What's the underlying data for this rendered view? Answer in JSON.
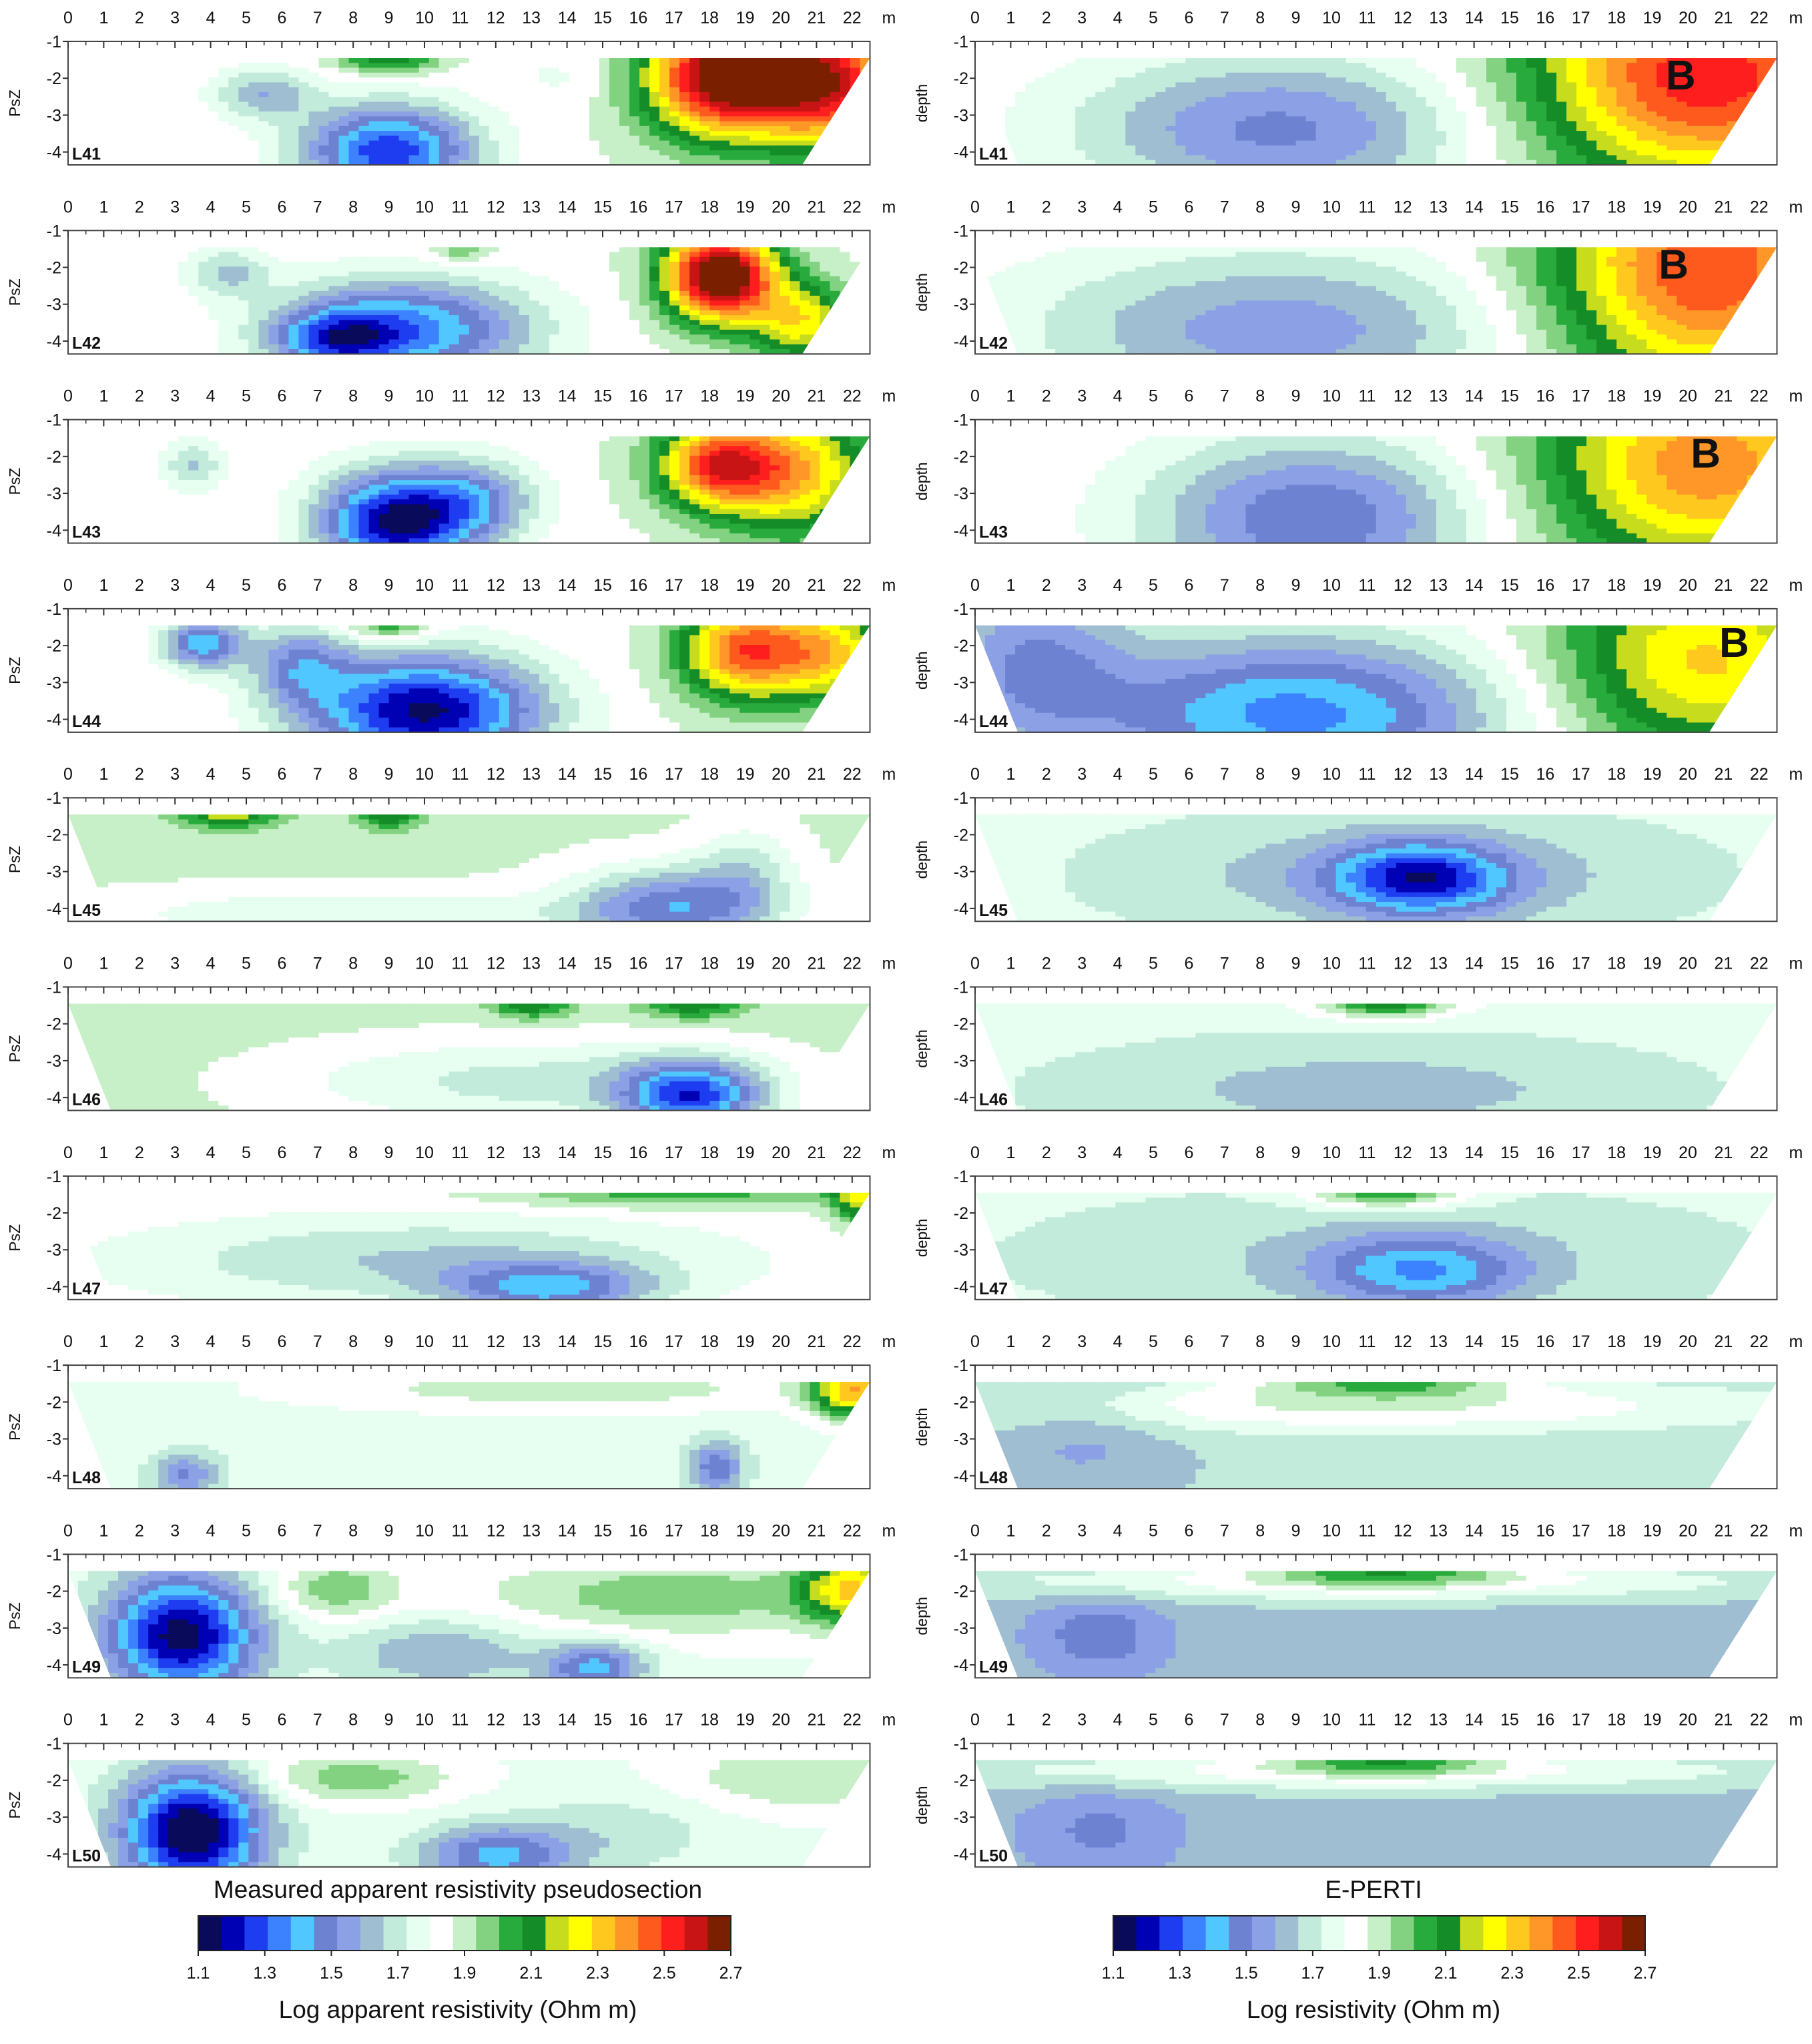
{
  "figure": {
    "columns": [
      {
        "id": "measured",
        "caption": "Measured apparent resistivity pseudosection",
        "ylabel": "PsZ",
        "colorbar": {
          "label": "Log apparent resistivity (Ohm m)",
          "ticks": [
            "1.1",
            "1.3",
            "1.5",
            "1.7",
            "1.9",
            "2.1",
            "2.3",
            "2.5",
            "2.7"
          ]
        }
      },
      {
        "id": "eperti",
        "caption": "E-PERTI",
        "ylabel": "depth",
        "colorbar": {
          "label": "Log resistivity (Ohm m)",
          "ticks": [
            "1.1",
            "1.3",
            "1.5",
            "1.7",
            "1.9",
            "2.1",
            "2.3",
            "2.5",
            "2.7"
          ]
        }
      }
    ],
    "x_unit": "m",
    "colormap": [
      "#0a0a5a",
      "#0000b4",
      "#1e3cf0",
      "#3c82ff",
      "#50c8ff",
      "#6e82d2",
      "#8ca0e6",
      "#a0bed2",
      "#c3ebdc",
      "#e6fff0",
      "#ffffff",
      "#c8f0c8",
      "#82d282",
      "#28aa3c",
      "#148c28",
      "#c8dc1e",
      "#ffff00",
      "#ffc81e",
      "#ff9628",
      "#ff5a1e",
      "#ff1e1e",
      "#c81414",
      "#7a1f00"
    ]
  },
  "chart_data": {
    "type": "heatmap",
    "x_range": [
      0,
      22.5
    ],
    "x_ticks": [
      "0",
      "1",
      "2",
      "3",
      "4",
      "5",
      "6",
      "7",
      "8",
      "9",
      "10",
      "11",
      "12",
      "13",
      "14",
      "15",
      "16",
      "17",
      "18",
      "19",
      "20",
      "21",
      "22"
    ],
    "y_range": [
      -4.5,
      -1
    ],
    "y_ticks": [
      "-1",
      "-2",
      "-3",
      "-4"
    ],
    "color_range": [
      1.1,
      2.7
    ],
    "lines": [
      {
        "label": "L41",
        "eperti_marker": "B",
        "measured_base": 1.85,
        "eperti_base": 1.85,
        "measured_features": [
          {
            "x": 18.5,
            "y": -2.0,
            "sx": 1.6,
            "sy": 1.2,
            "amp": 0.9
          },
          {
            "x": 21.5,
            "y": -2.2,
            "sx": 1.4,
            "sy": 1.3,
            "amp": 0.65
          },
          {
            "x": 9.0,
            "y": -4.1,
            "sx": 1.7,
            "sy": 0.9,
            "amp": -0.6
          },
          {
            "x": 5.5,
            "y": -2.5,
            "sx": 1.0,
            "sy": 0.5,
            "amp": -0.25
          },
          {
            "x": 9.0,
            "y": -1.5,
            "sx": 1.0,
            "sy": 0.3,
            "amp": 0.3
          },
          {
            "x": 14.0,
            "y": -2.0,
            "sx": 1.2,
            "sy": 0.6,
            "amp": -0.07
          }
        ],
        "eperti_features": [
          {
            "x": 20.5,
            "y": -2.0,
            "sx": 3.5,
            "sy": 2.2,
            "amp": 0.7
          },
          {
            "x": 8.5,
            "y": -3.5,
            "sx": 4.0,
            "sy": 1.5,
            "amp": -0.35
          }
        ]
      },
      {
        "label": "L42",
        "eperti_marker": "B",
        "measured_base": 1.85,
        "eperti_base": 1.85,
        "measured_features": [
          {
            "x": 18.3,
            "y": -2.3,
            "sx": 1.1,
            "sy": 0.9,
            "amp": 0.95
          },
          {
            "x": 20.6,
            "y": -3.6,
            "sx": 1.0,
            "sy": 0.8,
            "amp": 0.4
          },
          {
            "x": 9.5,
            "y": -3.8,
            "sx": 2.5,
            "sy": 1.0,
            "amp": -0.5
          },
          {
            "x": 7.5,
            "y": -4.1,
            "sx": 1.2,
            "sy": 0.6,
            "amp": -0.35
          },
          {
            "x": 4.5,
            "y": -2.2,
            "sx": 0.8,
            "sy": 0.5,
            "amp": -0.2
          },
          {
            "x": 11.0,
            "y": -1.6,
            "sx": 0.6,
            "sy": 0.3,
            "amp": 0.15
          }
        ],
        "eperti_features": [
          {
            "x": 20.5,
            "y": -2.2,
            "sx": 3.2,
            "sy": 2.4,
            "amp": 0.65
          },
          {
            "x": 8.5,
            "y": -3.8,
            "sx": 5.0,
            "sy": 1.6,
            "amp": -0.3
          }
        ]
      },
      {
        "label": "L43",
        "eperti_marker": "B",
        "measured_base": 1.85,
        "eperti_base": 1.85,
        "measured_features": [
          {
            "x": 18.2,
            "y": -2.3,
            "sx": 1.2,
            "sy": 0.9,
            "amp": 0.6
          },
          {
            "x": 20.5,
            "y": -2.5,
            "sx": 1.5,
            "sy": 1.3,
            "amp": 0.45
          },
          {
            "x": 9.2,
            "y": -3.9,
            "sx": 1.5,
            "sy": 1.0,
            "amp": -0.7
          },
          {
            "x": 11.5,
            "y": -3.3,
            "sx": 1.2,
            "sy": 0.8,
            "amp": -0.3
          },
          {
            "x": 3.5,
            "y": -2.3,
            "sx": 0.6,
            "sy": 0.5,
            "amp": -0.2
          }
        ],
        "eperti_features": [
          {
            "x": 20.5,
            "y": -2.3,
            "sx": 3.3,
            "sy": 2.2,
            "amp": 0.55
          },
          {
            "x": 9.5,
            "y": -3.8,
            "sx": 3.3,
            "sy": 1.6,
            "amp": -0.4
          }
        ]
      },
      {
        "label": "L44",
        "eperti_marker": "B",
        "measured_base": 1.85,
        "eperti_base": 1.85,
        "measured_features": [
          {
            "x": 19.0,
            "y": -2.2,
            "sx": 1.3,
            "sy": 1.0,
            "amp": 0.6
          },
          {
            "x": 21.5,
            "y": -2.3,
            "sx": 1.2,
            "sy": 1.0,
            "amp": 0.4
          },
          {
            "x": 10.0,
            "y": -3.9,
            "sx": 2.3,
            "sy": 1.1,
            "amp": -0.7
          },
          {
            "x": 3.8,
            "y": -2.0,
            "sx": 0.8,
            "sy": 0.5,
            "amp": -0.45
          },
          {
            "x": 6.5,
            "y": -2.6,
            "sx": 1.0,
            "sy": 0.8,
            "amp": -0.3
          },
          {
            "x": 9.0,
            "y": -1.5,
            "sx": 0.8,
            "sy": 0.3,
            "amp": 0.25
          }
        ],
        "eperti_features": [
          {
            "x": 20.5,
            "y": -2.5,
            "sx": 3.0,
            "sy": 2.0,
            "amp": 0.45
          },
          {
            "x": 9.0,
            "y": -4.0,
            "sx": 4.2,
            "sy": 1.6,
            "amp": -0.5
          },
          {
            "x": 1.5,
            "y": -2.5,
            "sx": 2.0,
            "sy": 1.8,
            "amp": -0.3
          }
        ]
      },
      {
        "label": "L45",
        "eperti_marker": "",
        "measured_base": 1.88,
        "eperti_base": 1.75,
        "measured_features": [
          {
            "x": 4.5,
            "y": -1.5,
            "sx": 1.0,
            "sy": 0.3,
            "amp": 0.3
          },
          {
            "x": 9.0,
            "y": -1.5,
            "sx": 0.7,
            "sy": 0.3,
            "amp": 0.25
          },
          {
            "x": 17.0,
            "y": -4.1,
            "sx": 2.0,
            "sy": 0.8,
            "amp": -0.4
          },
          {
            "x": 19.0,
            "y": -3.0,
            "sx": 1.0,
            "sy": 0.9,
            "amp": -0.15
          },
          {
            "x": 8.0,
            "y": -4.3,
            "sx": 5.0,
            "sy": 0.5,
            "amp": -0.15
          }
        ],
        "eperti_features": [
          {
            "x": 12.5,
            "y": -3.3,
            "sx": 1.7,
            "sy": 0.7,
            "amp": -0.45
          },
          {
            "x": 12.0,
            "y": -3.2,
            "sx": 5.0,
            "sy": 1.1,
            "amp": -0.15
          }
        ]
      },
      {
        "label": "L46",
        "eperti_marker": "",
        "measured_base": 1.9,
        "eperti_base": 1.78,
        "measured_features": [
          {
            "x": 13.0,
            "y": -1.5,
            "sx": 0.8,
            "sy": 0.3,
            "amp": 0.25
          },
          {
            "x": 17.5,
            "y": -1.5,
            "sx": 1.0,
            "sy": 0.3,
            "amp": 0.25
          },
          {
            "x": 17.5,
            "y": -4.1,
            "sx": 1.4,
            "sy": 0.7,
            "amp": -0.55
          },
          {
            "x": 13.0,
            "y": -3.7,
            "sx": 5.0,
            "sy": 0.9,
            "amp": -0.2
          }
        ],
        "eperti_features": [
          {
            "x": 11.5,
            "y": -1.5,
            "sx": 1.3,
            "sy": 0.3,
            "amp": 0.35
          },
          {
            "x": 11.0,
            "y": -3.9,
            "sx": 7.0,
            "sy": 1.2,
            "amp": -0.15
          }
        ]
      },
      {
        "label": "L47",
        "eperti_marker": "",
        "measured_base": 1.85,
        "eperti_base": 1.75,
        "measured_features": [
          {
            "x": 22.3,
            "y": -1.7,
            "sx": 0.6,
            "sy": 0.5,
            "amp": 0.35
          },
          {
            "x": 17.0,
            "y": -1.5,
            "sx": 3.5,
            "sy": 0.3,
            "amp": 0.2
          },
          {
            "x": 13.5,
            "y": -4.2,
            "sx": 2.0,
            "sy": 0.5,
            "amp": -0.35
          },
          {
            "x": 10.0,
            "y": -3.4,
            "sx": 6.0,
            "sy": 0.9,
            "amp": -0.2
          }
        ],
        "eperti_features": [
          {
            "x": 11.5,
            "y": -1.5,
            "sx": 1.5,
            "sy": 0.3,
            "amp": 0.35
          },
          {
            "x": 12.5,
            "y": -3.7,
            "sx": 2.0,
            "sy": 0.7,
            "amp": -0.3
          },
          {
            "x": 11.5,
            "y": -3.3,
            "sx": 6.5,
            "sy": 1.2,
            "amp": -0.1
          }
        ]
      },
      {
        "label": "L48",
        "eperti_marker": "",
        "measured_base": 1.75,
        "eperti_base": 1.67,
        "measured_features": [
          {
            "x": 22.0,
            "y": -1.7,
            "sx": 0.8,
            "sy": 0.6,
            "amp": 0.55
          },
          {
            "x": 14.0,
            "y": -1.7,
            "sx": 6.0,
            "sy": 0.5,
            "amp": 0.15
          },
          {
            "x": 18.2,
            "y": -3.9,
            "sx": 0.5,
            "sy": 0.5,
            "amp": -0.3
          },
          {
            "x": 3.3,
            "y": -4.1,
            "sx": 0.6,
            "sy": 0.4,
            "amp": -0.25
          }
        ],
        "eperti_features": [
          {
            "x": 11.5,
            "y": -1.5,
            "sx": 2.5,
            "sy": 0.3,
            "amp": 0.3
          },
          {
            "x": 11.0,
            "y": -2.2,
            "sx": 8.0,
            "sy": 0.5,
            "amp": 0.2
          },
          {
            "x": 3.0,
            "y": -3.0,
            "sx": 1.8,
            "sy": 1.3,
            "amp": -0.1
          }
        ]
      },
      {
        "label": "L49",
        "eperti_marker": "",
        "measured_base": 1.78,
        "eperti_base": 1.62,
        "measured_features": [
          {
            "x": 3.2,
            "y": -3.3,
            "sx": 1.5,
            "sy": 1.2,
            "amp": -0.65
          },
          {
            "x": 14.8,
            "y": -4.2,
            "sx": 1.0,
            "sy": 0.5,
            "amp": -0.35
          },
          {
            "x": 10.5,
            "y": -3.8,
            "sx": 2.0,
            "sy": 0.7,
            "amp": -0.2
          },
          {
            "x": 22.0,
            "y": -2.0,
            "sx": 1.0,
            "sy": 0.7,
            "amp": 0.45
          },
          {
            "x": 17.0,
            "y": -2.2,
            "sx": 4.0,
            "sy": 0.8,
            "amp": 0.2
          },
          {
            "x": 7.5,
            "y": -2.0,
            "sx": 1.2,
            "sy": 0.6,
            "amp": 0.2
          }
        ],
        "eperti_features": [
          {
            "x": 11.5,
            "y": -1.5,
            "sx": 2.5,
            "sy": 0.3,
            "amp": 0.3
          },
          {
            "x": 11.0,
            "y": -1.8,
            "sx": 9.0,
            "sy": 0.4,
            "amp": 0.2
          },
          {
            "x": 3.5,
            "y": -3.3,
            "sx": 1.3,
            "sy": 0.8,
            "amp": -0.15
          }
        ]
      },
      {
        "label": "L50",
        "eperti_marker": "",
        "measured_base": 1.78,
        "eperti_base": 1.62,
        "measured_features": [
          {
            "x": 3.5,
            "y": -3.5,
            "sx": 1.4,
            "sy": 1.2,
            "amp": -0.7
          },
          {
            "x": 12.0,
            "y": -4.2,
            "sx": 1.5,
            "sy": 0.6,
            "amp": -0.35
          },
          {
            "x": 15.5,
            "y": -3.5,
            "sx": 2.0,
            "sy": 0.8,
            "amp": -0.1
          },
          {
            "x": 8.0,
            "y": -2.0,
            "sx": 2.0,
            "sy": 0.5,
            "amp": 0.2
          },
          {
            "x": 20.5,
            "y": -2.0,
            "sx": 2.5,
            "sy": 0.7,
            "amp": 0.15
          }
        ],
        "eperti_features": [
          {
            "x": 11.5,
            "y": -1.5,
            "sx": 2.2,
            "sy": 0.3,
            "amp": 0.3
          },
          {
            "x": 11.0,
            "y": -1.8,
            "sx": 9.0,
            "sy": 0.4,
            "amp": 0.2
          },
          {
            "x": 3.5,
            "y": -3.5,
            "sx": 1.5,
            "sy": 0.9,
            "amp": -0.12
          }
        ]
      }
    ]
  }
}
